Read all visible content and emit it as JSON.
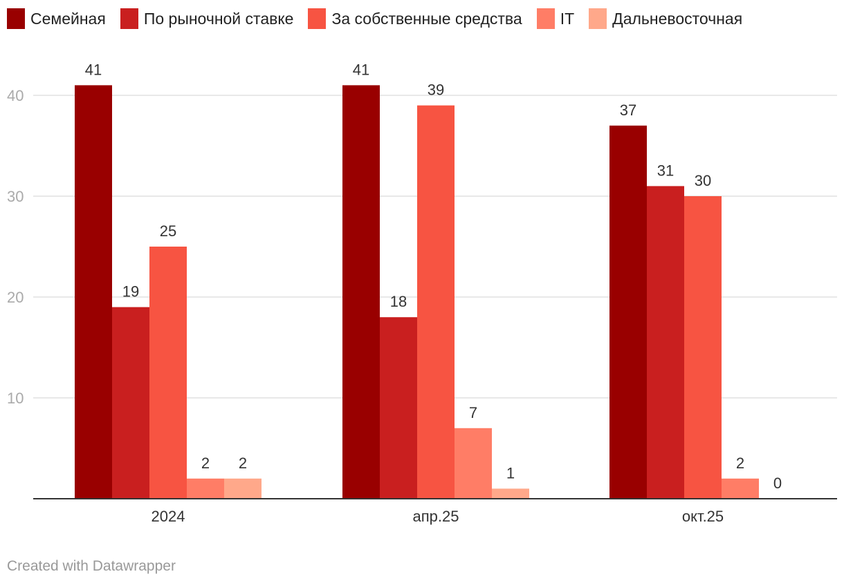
{
  "chart_data": {
    "type": "bar",
    "categories": [
      "2024",
      "апр.25",
      "окт.25"
    ],
    "series": [
      {
        "name": "Семейная",
        "color": "#990000",
        "values": [
          41,
          41,
          37
        ]
      },
      {
        "name": "По рыночной ставке",
        "color": "#c91f1f",
        "values": [
          19,
          18,
          31
        ]
      },
      {
        "name": "За собственные средства",
        "color": "#f75442",
        "values": [
          25,
          39,
          30
        ]
      },
      {
        "name": "IT",
        "color": "#ff7d66",
        "values": [
          2,
          7,
          2
        ]
      },
      {
        "name": "Дальневосточная",
        "color": "#ffa88a",
        "values": [
          2,
          1,
          0
        ]
      }
    ],
    "yticks": [
      10,
      20,
      30,
      40
    ],
    "ylim": [
      0,
      45
    ],
    "grid": true,
    "legend_position": "top-left"
  },
  "footer": {
    "credit": "Created with Datawrapper"
  }
}
